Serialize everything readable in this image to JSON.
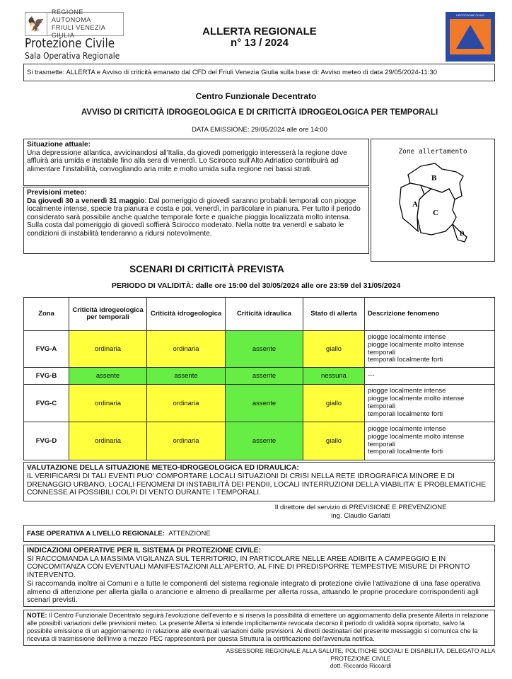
{
  "header": {
    "region_logo_text": [
      "REGIONE AUTONOMA",
      "FRIULI VENEZIA GIULIA"
    ],
    "org_name": "Protezione Civile",
    "org_subtitle": "Sala Operativa Regionale",
    "title": "ALLERTA REGIONALE",
    "number": "n° 13 / 2024",
    "emblem_text": "PROTEZIONE CIVILE"
  },
  "transmit": "Si trasmette: ALLERTA e Avviso di criticità emanato dal CFD del Friuli Venezia Giulia sulla base di:  Avviso meteo di data 29/05/2024-11:30",
  "cfd_title": "Centro Funzionale Decentrato",
  "avviso_title": "AVVISO DI CRITICITÀ IDROGEOLOGICA E DI CRITICITÀ IDROGEOLOGICA PER TEMPORALI",
  "emission": "DATA EMISSIONE: 29/05/2024 alle ore 14:00",
  "situazione": {
    "label": "Situazione attuale:",
    "text": "Una depressione atlantica, avvicinandosi all'Italia, da giovedì pomeriggio interesserà la regione dove affluirà aria umida e instabile fino alla sera di venerdì. Lo Scirocco sull'Alto Adriatico contribuirà ad alimentare l'instabilità, convogliando aria mite e molto umida sulla regione nei bassi strati."
  },
  "previsioni": {
    "label": "Previsioni meteo:",
    "period": "Da giovedì 30 a venerdì 31 maggio",
    "text": ": Dal pomeriggio di giovedì saranno probabili temporali con piogge localmente intense, specie tra pianura e costa e poi, venerdì, in particolare in pianura. Per tutto il periodo considerato sarà possibile anche qualche temporale forte e qualche pioggia localizzata molto intensa. Sulla costa dal pomeriggio di giovedì soffierà Scirocco moderato. Nella notte tra venerdì e sabato le condizioni di instabilità tenderanno a ridursi notevolmente."
  },
  "map": {
    "title": "Zone allertamento",
    "zones": [
      "A",
      "B",
      "C",
      "D"
    ]
  },
  "scenari_title": "SCENARI DI CRITICITÀ PREVISTA",
  "periodo": "PERIODO DI VALIDITÀ: dalle ore 15:00 del 30/05/2024 alle ore 23:59 del 31/05/2024",
  "table": {
    "headers": [
      "Zona",
      "Criticità idrogeologica per temporali",
      "Criticità idrogeologica",
      "Criticità idraulica",
      "Stato di allerta",
      "Descrizione fenomeno"
    ],
    "colors": {
      "yellow": "#ffff3c",
      "green": "#66ee44"
    },
    "rows": [
      {
        "zona": "FVG-A",
        "temporali": "ordinaria",
        "idrogeologica": "ordinaria",
        "idraulica": "assente",
        "allerta": "giallo",
        "descrizione": [
          "piogge localmente intense",
          "piogge localmente molto intense",
          "temporali",
          "temporali localmente forti"
        ]
      },
      {
        "zona": "FVG-B",
        "temporali": "assente",
        "idrogeologica": "assente",
        "idraulica": "assente",
        "allerta": "nessuna",
        "descrizione": [
          "---"
        ]
      },
      {
        "zona": "FVG-C",
        "temporali": "ordinaria",
        "idrogeologica": "ordinaria",
        "idraulica": "assente",
        "allerta": "giallo",
        "descrizione": [
          "piogge localmente intense",
          "piogge localmente molto intense",
          "temporali",
          "temporali localmente forti"
        ]
      },
      {
        "zona": "FVG-D",
        "temporali": "ordinaria",
        "idrogeologica": "ordinaria",
        "idraulica": "assente",
        "allerta": "giallo",
        "descrizione": [
          "piogge localmente intense",
          "piogge localmente molto intense",
          "temporali",
          "temporali localmente forti"
        ]
      }
    ]
  },
  "valutazione": {
    "label": "VALUTAZIONE DELLA SITUAZIONE METEO-IDROGEOLOGICA ED IDRAULICA:",
    "text": "IL VERIFICARSI DI TALI EVENTI PUO' COMPORTARE LOCALI SITUAZIONI DI CRISI NELLA RETE IDROGRAFICA MINORE E DI DRENAGGIO URBANO, LOCALI FENOMENI DI INSTABILITÀ DEI PENDII, LOCALI INTERRUZIONI DELLA VIABILITA' E PROBLEMATICHE CONNESSE AI POSSIBILI COLPI DI  VENTO DURANTE I TEMPORALI."
  },
  "direttore": [
    "Il direttore del servizio di PREVISIONE E PREVENZIONE",
    "ing. Claudio Garlatti"
  ],
  "fase": {
    "label": "FASE OPERATIVA A LIVELLO REGIONALE:",
    "value": "ATTENZIONE"
  },
  "indicazioni": {
    "label": "INDICAZIONI OPERATIVE PER IL SISTEMA DI PROTEZIONE CIVILE:",
    "text1": "SI RACCOMANDA LA MASSIMA VIGILANZA SUL TERRITORIO, IN PARTICOLARE NELLE AREE ADIBITE A CAMPEGGIO E IN CONCOMITANZA CON EVENTUALI MANIFESTAZIONI ALL'APERTO, AL FINE DI PREDISPORRE TEMPESTIVE MISURE DI PRONTO INTERVENTO.",
    "text2": "Si raccomanda inoltre ai Comuni e a tutte le componenti del sistema regionale integrato di protezione civile l'attivazione di una fase operativa almeno di attenzione per allerta gialla o arancione e almeno di preallarme per allerta rossa, attuando le proprie procedure corrispondenti agli scenari previsti."
  },
  "note": {
    "label": "NOTE:",
    "text": " Il Centro Funzionale Decentrato seguirà l'evoluzione dell'evento e si riserva la possibilità di emettere un aggiornamento della presente Allerta in relazione alle possibili variazioni delle previsioni meteo. La presente Allerta si intende implicitamente revocata decorso il periodo di validità sopra riportato, salvo la possibile emissione di un aggiornamento in relazione alle eventuali variazioni delle previsioni. Ai diretti destinatari del presente messaggio si comunica che la ricevuta di trasmissione dell'invio a mezzo PEC rappresenterà per questa Struttura la certificazione dell'avvenuta notifica."
  },
  "assessore": [
    "ASSESSORE REGIONALE ALLA SALUTE, POLITICHE SOCIALI E DISABILITÀ, DELEGATO ALLA",
    "PROTEZIONE CIVILE",
    "dott. Riccardo Riccardi"
  ]
}
